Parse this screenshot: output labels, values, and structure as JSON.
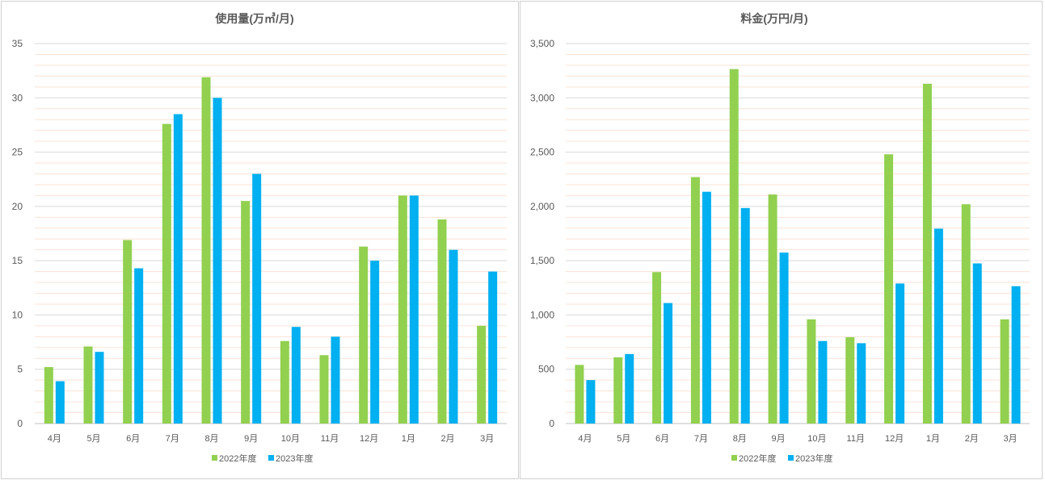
{
  "chart_data": [
    {
      "type": "bar",
      "title": "使用量(万㎥/月)",
      "categories": [
        "4月",
        "5月",
        "6月",
        "7月",
        "8月",
        "9月",
        "10月",
        "11月",
        "12月",
        "1月",
        "2月",
        "3月"
      ],
      "series": [
        {
          "name": "2022年度",
          "color": "#92d050",
          "values": [
            5.2,
            7.1,
            16.9,
            27.6,
            31.9,
            20.5,
            7.6,
            6.3,
            16.3,
            21.0,
            18.8,
            9.0
          ]
        },
        {
          "name": "2023年度",
          "color": "#00b0f0",
          "values": [
            3.9,
            6.6,
            14.3,
            28.5,
            30.0,
            23.0,
            8.9,
            8.0,
            15.0,
            21.0,
            16.0,
            14.0
          ]
        }
      ],
      "ylim": [
        0,
        35
      ],
      "yticks": [
        "0",
        "5",
        "10",
        "15",
        "20",
        "25",
        "30",
        "35"
      ],
      "grid": true,
      "legend": "bottom"
    },
    {
      "type": "bar",
      "title": "料金(万円/月)",
      "categories": [
        "4月",
        "5月",
        "6月",
        "7月",
        "8月",
        "9月",
        "10月",
        "11月",
        "12月",
        "1月",
        "2月",
        "3月"
      ],
      "series": [
        {
          "name": "2022年度",
          "color": "#92d050",
          "values": [
            540,
            610,
            1395,
            2270,
            3265,
            2110,
            960,
            795,
            2480,
            3130,
            2020,
            960
          ]
        },
        {
          "name": "2023年度",
          "color": "#00b0f0",
          "values": [
            400,
            640,
            1110,
            2135,
            1985,
            1575,
            760,
            740,
            1290,
            1795,
            1475,
            1265
          ]
        }
      ],
      "ylim": [
        0,
        3500
      ],
      "yticks": [
        "0",
        "500",
        "1,000",
        "1,500",
        "2,000",
        "2,500",
        "3,000",
        "3,500"
      ],
      "grid": true,
      "legend": "bottom"
    }
  ]
}
